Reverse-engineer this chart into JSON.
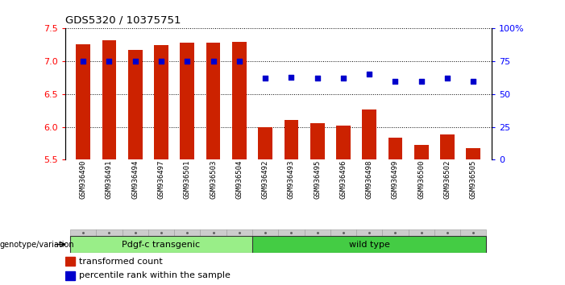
{
  "title": "GDS5320 / 10375751",
  "samples": [
    "GSM936490",
    "GSM936491",
    "GSM936494",
    "GSM936497",
    "GSM936501",
    "GSM936503",
    "GSM936504",
    "GSM936492",
    "GSM936493",
    "GSM936495",
    "GSM936496",
    "GSM936498",
    "GSM936499",
    "GSM936500",
    "GSM936502",
    "GSM936505"
  ],
  "bar_values": [
    7.26,
    7.32,
    7.17,
    7.25,
    7.28,
    7.28,
    7.3,
    5.99,
    6.1,
    6.05,
    6.02,
    6.27,
    5.83,
    5.72,
    5.88,
    5.67
  ],
  "percentile_values": [
    75,
    75,
    75,
    75,
    75,
    75,
    75,
    62,
    63,
    62,
    62,
    65,
    60,
    60,
    62,
    60
  ],
  "ylim_left": [
    5.5,
    7.5
  ],
  "ylim_right": [
    0,
    100
  ],
  "yticks_left": [
    5.5,
    6.0,
    6.5,
    7.0,
    7.5
  ],
  "yticks_right": [
    0,
    25,
    50,
    75,
    100
  ],
  "ytick_labels_right": [
    "0",
    "25",
    "50",
    "75",
    "100%"
  ],
  "bar_color": "#cc2200",
  "dot_color": "#0000cc",
  "group1_label": "Pdgf-c transgenic",
  "group2_label": "wild type",
  "group1_color": "#99ee88",
  "group2_color": "#44cc44",
  "group1_count": 7,
  "group2_count": 9,
  "genotype_label": "genotype/variation",
  "legend_bar_label": "transformed count",
  "legend_dot_label": "percentile rank within the sample",
  "bg_color": "#ffffff",
  "tick_bg_color": "#cccccc",
  "gridline_color": "#000000"
}
